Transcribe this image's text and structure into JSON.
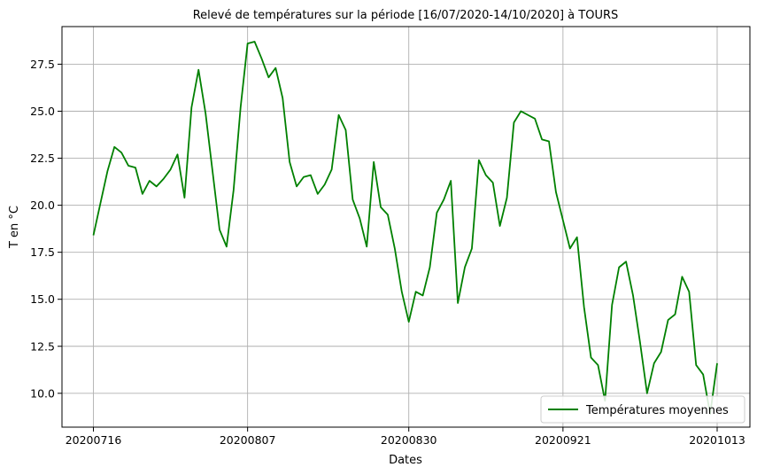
{
  "chart_data": {
    "type": "line",
    "title": "Relevé de températures sur la période [16/07/2020-14/10/2020] à TOURS",
    "xlabel": "Dates",
    "ylabel": "T en °C",
    "x_ticks": [
      "20200716",
      "20200807",
      "20200830",
      "20200921",
      "20201013"
    ],
    "ylim": [
      8.2,
      29.5
    ],
    "y_ticks": [
      "10.0",
      "12.5",
      "15.0",
      "17.5",
      "20.0",
      "22.5",
      "25.0",
      "27.5"
    ],
    "grid": true,
    "legend_position": "lower right",
    "series": [
      {
        "name": "Températures moyennes",
        "color": "#008000",
        "x_start_date": "2020-07-16",
        "values": [
          18.4,
          20.1,
          21.8,
          23.1,
          22.8,
          22.1,
          22.0,
          20.6,
          21.3,
          21.0,
          21.4,
          21.9,
          22.7,
          20.4,
          25.2,
          27.2,
          24.9,
          21.8,
          18.7,
          17.8,
          20.8,
          25.2,
          28.6,
          28.7,
          27.8,
          26.8,
          27.3,
          25.7,
          22.3,
          21.0,
          21.5,
          21.6,
          20.6,
          21.1,
          21.9,
          24.8,
          24.0,
          20.3,
          19.3,
          17.8,
          22.3,
          19.9,
          19.5,
          17.7,
          15.4,
          13.8,
          15.4,
          15.2,
          16.7,
          19.6,
          20.3,
          21.3,
          14.8,
          16.7,
          17.7,
          22.4,
          21.6,
          21.2,
          18.9,
          20.4,
          24.4,
          25.0,
          24.8,
          24.6,
          23.5,
          23.4,
          20.7,
          19.2,
          17.7,
          18.3,
          14.6,
          11.9,
          11.5,
          9.6,
          14.7,
          16.7,
          17.0,
          15.2,
          12.7,
          10.0,
          11.6,
          12.2,
          13.9,
          14.2,
          16.2,
          15.4,
          11.5,
          11.0,
          8.9,
          11.6
        ]
      }
    ]
  }
}
